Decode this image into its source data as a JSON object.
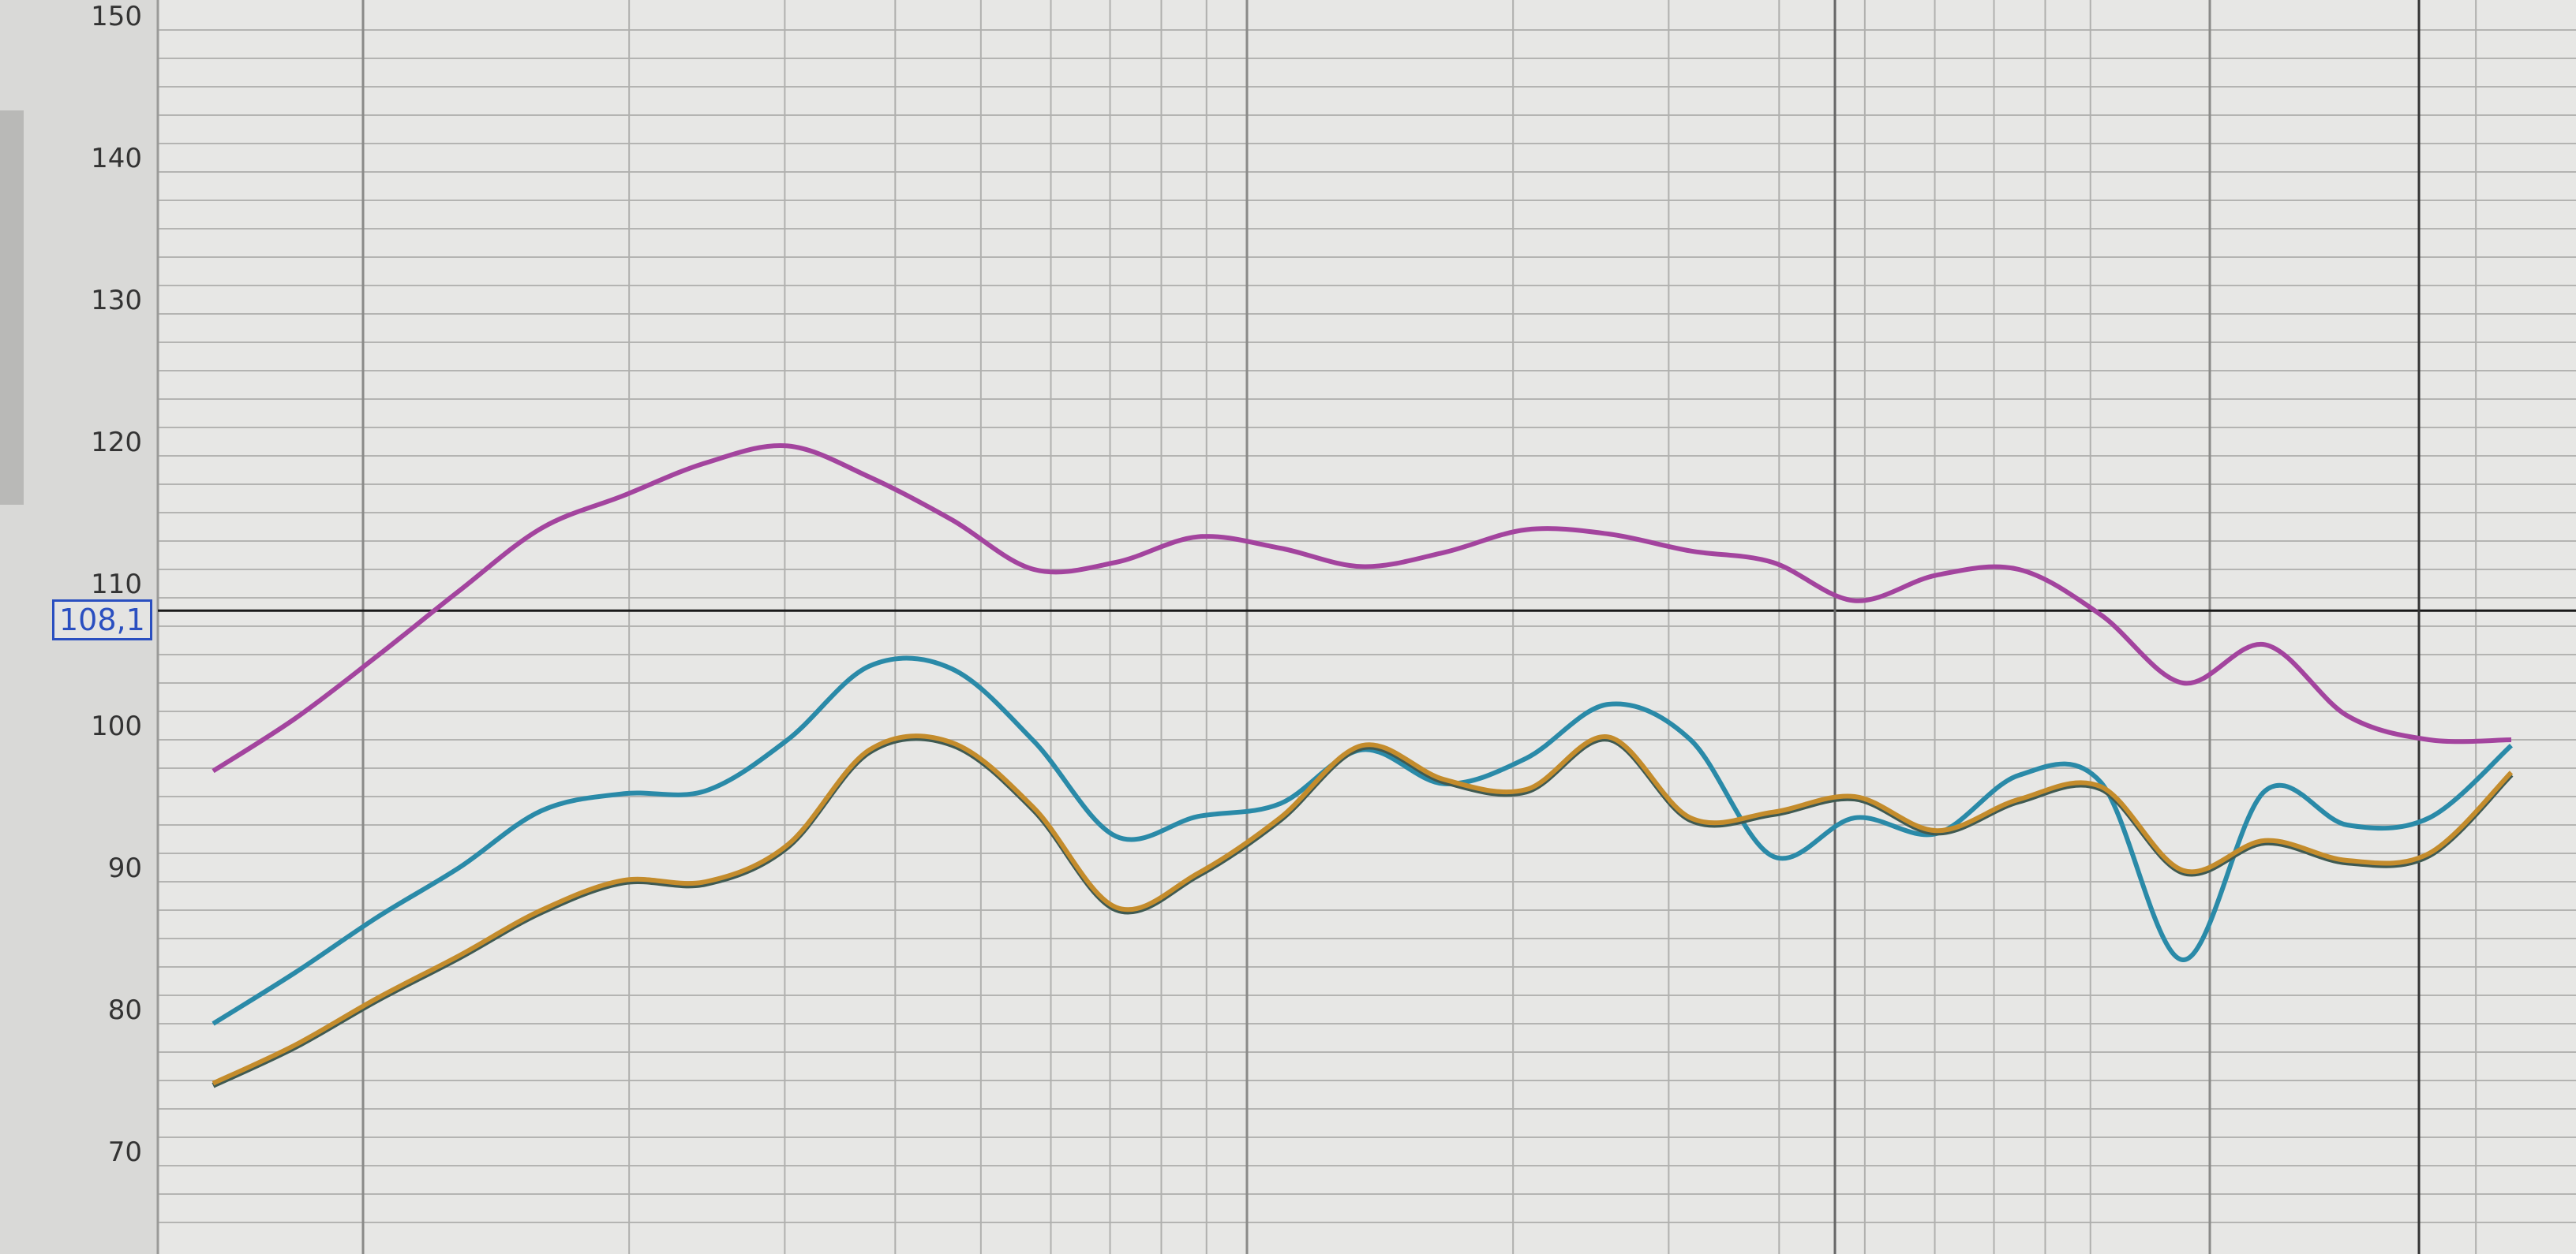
{
  "chart_data": {
    "type": "line",
    "title": "",
    "xlabel": "",
    "ylabel": "",
    "ylim": [
      65,
      150
    ],
    "yticks": [
      "150",
      "140",
      "130",
      "120",
      "110",
      "100",
      "90",
      "80",
      "70"
    ],
    "grid": true,
    "x": [
      0,
      1,
      2,
      3,
      4,
      5,
      6,
      7,
      8,
      9,
      10,
      11,
      12,
      13,
      14,
      15,
      16,
      17,
      18,
      19,
      20,
      21,
      22,
      23,
      24,
      25,
      26,
      27,
      28
    ],
    "series": [
      {
        "color": "#a3449e",
        "values": [
          96.8,
          100.5,
          104.9,
          109.5,
          113.9,
          116.2,
          118.5,
          119.7,
          117.5,
          114.5,
          111,
          111.5,
          113.3,
          112.5,
          111.2,
          112.2,
          113.8,
          113.5,
          112.3,
          111.5,
          108.8,
          110.6,
          111,
          107.8,
          103,
          105.7,
          100.7,
          99,
          99
        ]
      },
      {
        "color": "#2a8aa8",
        "values": [
          79,
          82.6,
          86.5,
          90,
          94,
          95.2,
          95.4,
          99,
          104.2,
          104,
          98.9,
          92.2,
          93.6,
          94.5,
          98.3,
          95.9,
          97.7,
          101.5,
          99,
          90.8,
          93.5,
          92.4,
          96.5,
          96,
          83.5,
          95.4,
          93,
          93.5,
          98.6
        ]
      },
      {
        "color": "#c48c2c",
        "values": [
          74.8,
          77.5,
          80.8,
          83.8,
          87,
          89.1,
          89,
          91.6,
          98.3,
          98.8,
          94.2,
          87.2,
          89.6,
          93.5,
          98.6,
          96.2,
          95.5,
          99.2,
          93.5,
          93.9,
          95,
          92.6,
          94.8,
          95.7,
          89.8,
          91.9,
          90.5,
          91,
          96.7
        ]
      }
    ],
    "cursor": {
      "value_label": "108,1",
      "value": 108.1,
      "color": "#2a4fc0"
    }
  }
}
